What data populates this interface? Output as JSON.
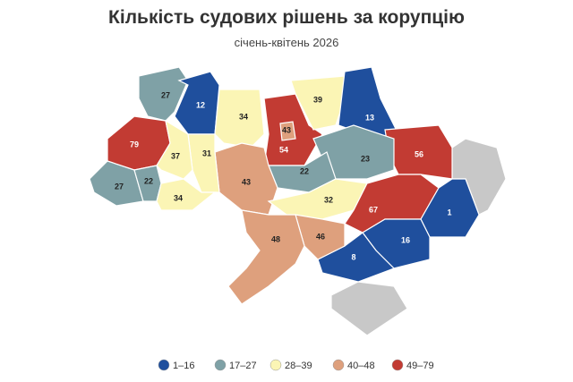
{
  "header": {
    "title": "Кількість судових рішень за корупцію",
    "subtitle": "січень-квітень 2026"
  },
  "regions": [
    {
      "value": 79,
      "color": "#c23b33"
    },
    {
      "value": 27,
      "color": "#7fa1a6"
    },
    {
      "value": 12,
      "color": "#1f4f9d"
    },
    {
      "value": 34,
      "color": "#fbf5b5"
    },
    {
      "value": 54,
      "color": "#c23b33"
    },
    {
      "value": 43,
      "color": "#dea07d"
    },
    {
      "value": 39,
      "color": "#fbf5b5"
    },
    {
      "value": 13,
      "color": "#1f4f9d"
    },
    {
      "value": 56,
      "color": "#c23b33"
    },
    {
      "value": 23,
      "color": "#7fa1a6"
    },
    {
      "value": 22,
      "color": "#7fa1a6"
    },
    {
      "value": 43,
      "color": "#dea07d"
    },
    {
      "value": 31,
      "color": "#fbf5b5"
    },
    {
      "value": 37,
      "color": "#fbf5b5"
    },
    {
      "value": 27,
      "color": "#7fa1a6"
    },
    {
      "value": 22,
      "color": "#7fa1a6"
    },
    {
      "value": 34,
      "color": "#fbf5b5"
    },
    {
      "value": 32,
      "color": "#fbf5b5"
    },
    {
      "value": 67,
      "color": "#c23b33"
    },
    {
      "value": 1,
      "color": "#1f4f9d"
    },
    {
      "value": 16,
      "color": "#1f4f9d"
    },
    {
      "value": 8,
      "color": "#1f4f9d"
    },
    {
      "value": 46,
      "color": "#dea07d"
    },
    {
      "value": 48,
      "color": "#dea07d"
    }
  ],
  "legend": [
    {
      "label": "1–16",
      "color": "#1f4f9d"
    },
    {
      "label": "17–27",
      "color": "#7fa1a6"
    },
    {
      "label": "28–39",
      "color": "#fbf5b5"
    },
    {
      "label": "40–48",
      "color": "#dea07d"
    },
    {
      "label": "49–79",
      "color": "#c23b33"
    }
  ]
}
